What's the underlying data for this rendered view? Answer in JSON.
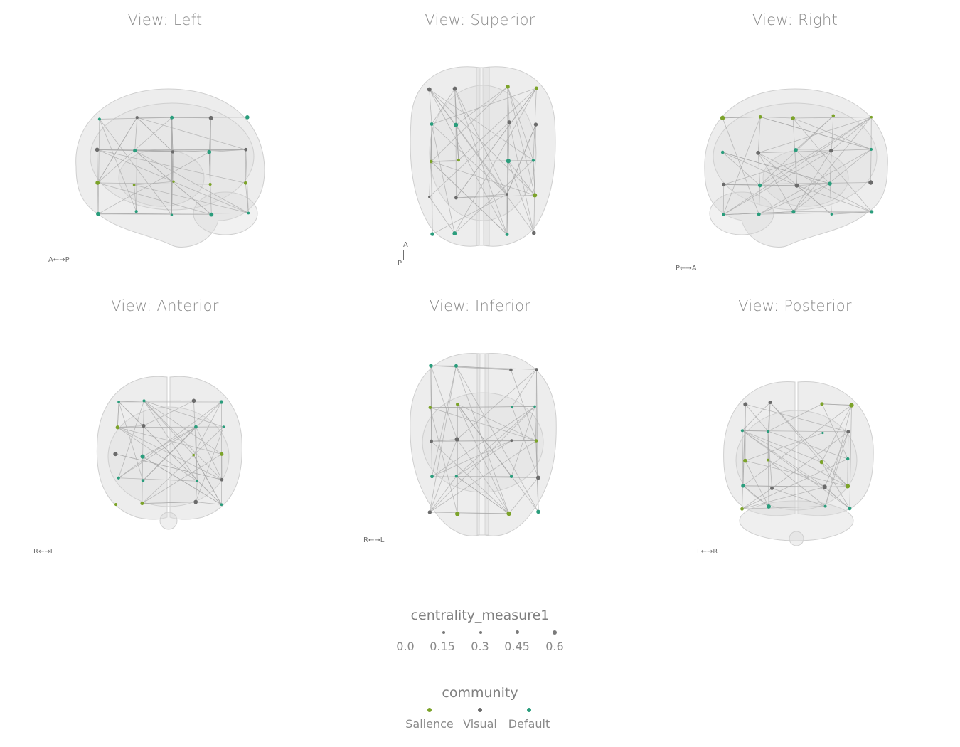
{
  "views": [
    {
      "id": "left",
      "title": "View: Left",
      "orientation": "A←→P"
    },
    {
      "id": "superior",
      "title": "View: Superior",
      "orientation_top": "A",
      "orientation_bottom": "P"
    },
    {
      "id": "right",
      "title": "View: Right",
      "orientation": "P←→A"
    },
    {
      "id": "anterior",
      "title": "View: Anterior",
      "orientation": "R←→L"
    },
    {
      "id": "inferior",
      "title": "View: Inferior",
      "orientation": "R←→L"
    },
    {
      "id": "posterior",
      "title": "View: Posterior",
      "orientation": "L←→R"
    }
  ],
  "legend_size": {
    "title": "centrality_measure1",
    "values": [
      "0.0",
      "0.15",
      "0.3",
      "0.45",
      "0.6"
    ]
  },
  "legend_community": {
    "title": "community",
    "items": [
      {
        "label": "Salience",
        "color": "#7ca32a"
      },
      {
        "label": "Visual",
        "color": "#6b6b6b"
      },
      {
        "label": "Default",
        "color": "#2a9d7c"
      }
    ]
  },
  "colors": {
    "brain_fill": "#dcdcdc",
    "edge": "#a8a8a8",
    "salience": "#7ca32a",
    "visual": "#6b6b6b",
    "default": "#2a9d7c"
  }
}
